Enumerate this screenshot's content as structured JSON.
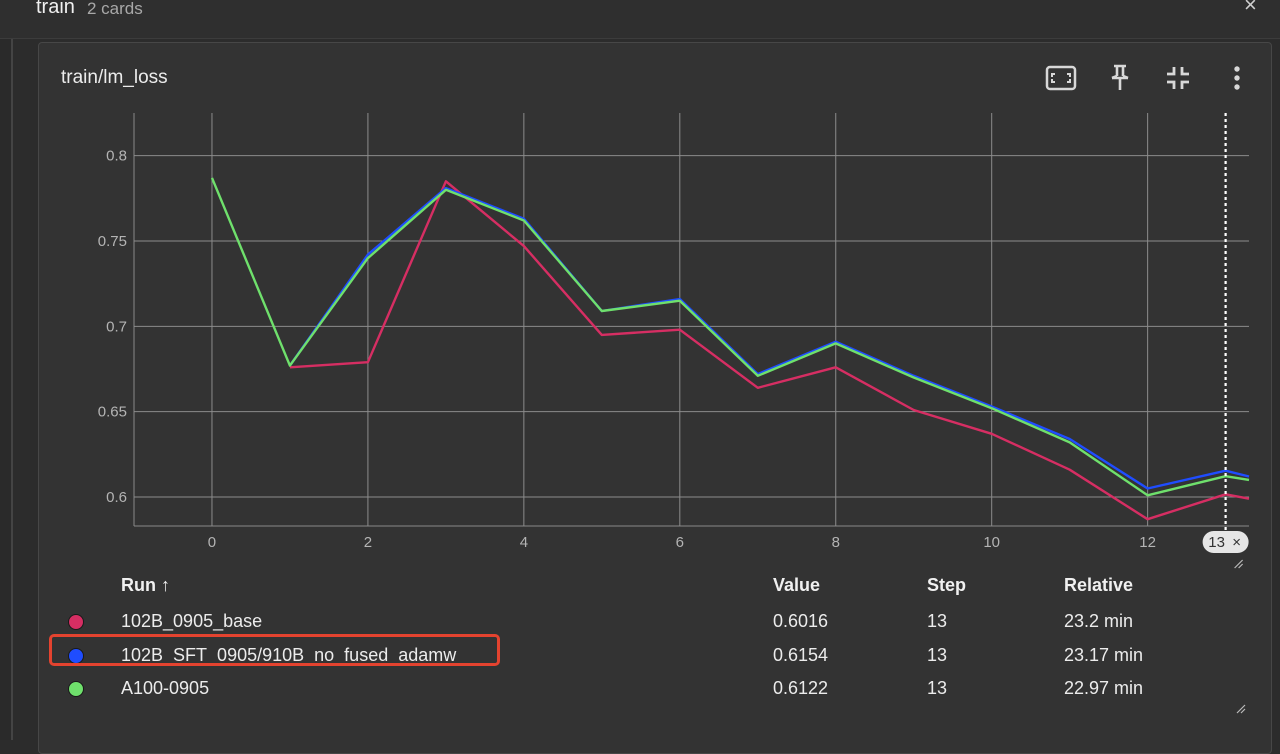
{
  "group": {
    "title": "train",
    "count": "2 cards",
    "close_glyph": "×"
  },
  "card": {
    "title": "train/lm_loss",
    "toolbar": [
      "fit-domain-icon",
      "pin-icon",
      "collapse-icon",
      "more-vert-icon"
    ]
  },
  "chart_data": {
    "type": "line",
    "xlabel": "",
    "ylabel": "",
    "xlim": [
      -1,
      13.3
    ],
    "ylim": [
      0.583,
      0.825
    ],
    "x_ticks": [
      "0",
      "2",
      "4",
      "6",
      "8",
      "10",
      "12"
    ],
    "y_ticks": [
      "0.8",
      "0.75",
      "0.7",
      "0.65",
      "0.6"
    ],
    "grid": true,
    "cursor": {
      "step": 13,
      "label": "13",
      "close_glyph": "×"
    },
    "series": [
      {
        "color": "#d62e63",
        "x": [
          1,
          2,
          3,
          4,
          5,
          6,
          7,
          8,
          9,
          10,
          11,
          12,
          13,
          13.3
        ],
        "y": [
          0.676,
          0.679,
          0.785,
          0.747,
          0.695,
          0.698,
          0.664,
          0.676,
          0.651,
          0.637,
          0.616,
          0.587,
          0.6016,
          0.599
        ]
      },
      {
        "color": "#1f4dff",
        "x": [
          1,
          2,
          3,
          4,
          5,
          6,
          7,
          8,
          9,
          10,
          11,
          12,
          13,
          13.3
        ],
        "y": [
          0.677,
          0.742,
          0.781,
          0.763,
          0.709,
          0.716,
          0.672,
          0.691,
          0.671,
          0.653,
          0.634,
          0.605,
          0.6154,
          0.612
        ]
      },
      {
        "color": "#6fe06c",
        "x": [
          0,
          1,
          2,
          3,
          4,
          5,
          6,
          7,
          8,
          9,
          10,
          11,
          12,
          13,
          13.3
        ],
        "y": [
          0.787,
          0.677,
          0.74,
          0.78,
          0.762,
          0.709,
          0.715,
          0.671,
          0.69,
          0.67,
          0.652,
          0.632,
          0.601,
          0.6122,
          0.61
        ]
      }
    ]
  },
  "table": {
    "headers": {
      "run": "Run ↑",
      "value": "Value",
      "step": "Step",
      "relative": "Relative"
    },
    "rows": [
      {
        "name": "102B_0905_base",
        "color": "#d62e63",
        "value": "0.6016",
        "step": "13",
        "relative": "23.2 min",
        "highlighted": false
      },
      {
        "name": "102B_SFT_0905/910B_no_fused_adamw",
        "color": "#1f4dff",
        "value": "0.6154",
        "step": "13",
        "relative": "23.17 min",
        "highlighted": true
      },
      {
        "name": "A100-0905",
        "color": "#6fe06c",
        "value": "0.6122",
        "step": "13",
        "relative": "22.97 min",
        "highlighted": false
      }
    ]
  }
}
